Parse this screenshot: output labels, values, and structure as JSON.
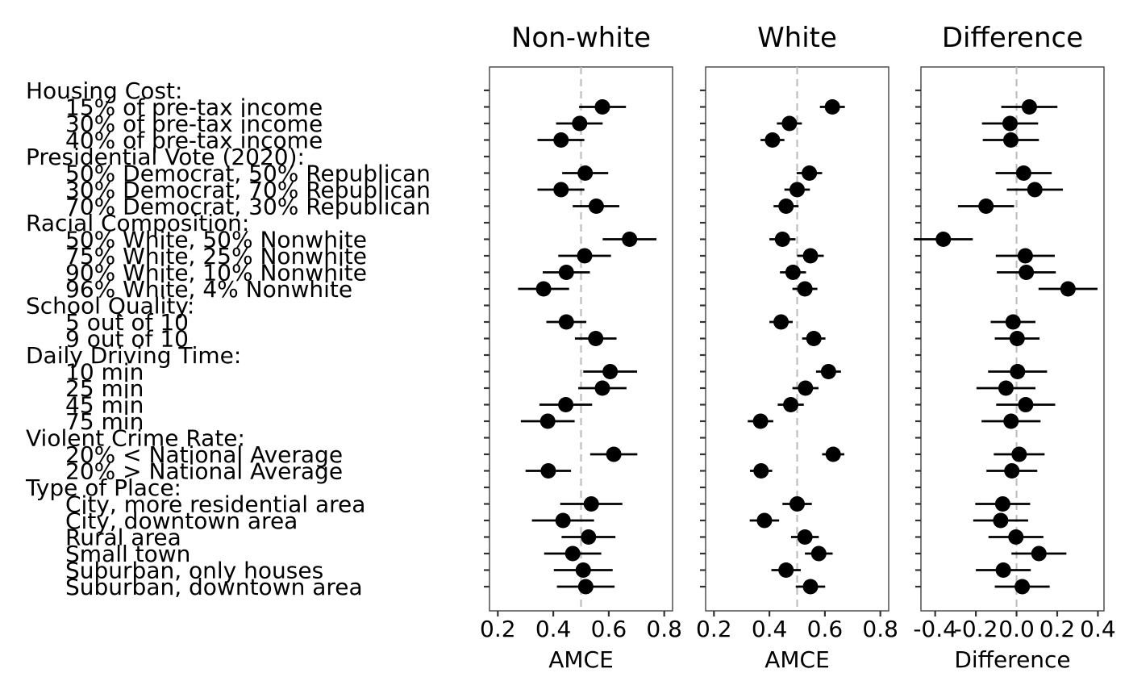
{
  "chart_data": {
    "type": "scatter",
    "subtype": "coefficient-plot-with-error-bars",
    "rows": [
      {
        "label": "Housing Cost:",
        "header": true
      },
      {
        "label": "15% of pre-tax income"
      },
      {
        "label": "30% of pre-tax income"
      },
      {
        "label": "40% of pre-tax income"
      },
      {
        "label": "Presidential Vote (2020):",
        "header": true
      },
      {
        "label": "50% Democrat, 50% Republican"
      },
      {
        "label": "30% Democrat, 70% Republican"
      },
      {
        "label": "70% Democrat, 30% Republican"
      },
      {
        "label": "Racial Composition:",
        "header": true
      },
      {
        "label": "50% White, 50% Nonwhite"
      },
      {
        "label": "75% White, 25% Nonwhite"
      },
      {
        "label": "90% White, 10% Nonwhite"
      },
      {
        "label": "96% White, 4% Nonwhite"
      },
      {
        "label": "School Quality:",
        "header": true
      },
      {
        "label": "5 out of 10"
      },
      {
        "label": "9 out of 10"
      },
      {
        "label": "Daily Driving Time:",
        "header": true
      },
      {
        "label": "10 min"
      },
      {
        "label": "25 min"
      },
      {
        "label": "45 min"
      },
      {
        "label": "75 min"
      },
      {
        "label": "Violent Crime Rate:",
        "header": true
      },
      {
        "label": "20% < National Average"
      },
      {
        "label": "20% > National Average"
      },
      {
        "label": "Type of Place:",
        "header": true
      },
      {
        "label": "City, more residential area"
      },
      {
        "label": "City, downtown area"
      },
      {
        "label": "Rural area"
      },
      {
        "label": "Small town"
      },
      {
        "label": "Suburban, only houses"
      },
      {
        "label": "Suburban, downtown area"
      }
    ],
    "panels": [
      {
        "title": "Non-white",
        "xlabel": "AMCE",
        "xlim": [
          0.17,
          0.83
        ],
        "ticks": [
          0.2,
          0.4,
          0.6,
          0.8
        ],
        "tick_labels": [
          "0.2",
          "0.4",
          "0.6",
          "0.8"
        ],
        "ref": 0.5,
        "points": [
          null,
          [
            0.577,
            0.493,
            0.662
          ],
          [
            0.495,
            0.41,
            0.578
          ],
          [
            0.428,
            0.343,
            0.512
          ],
          null,
          [
            0.515,
            0.432,
            0.598
          ],
          [
            0.428,
            0.343,
            0.512
          ],
          [
            0.555,
            0.47,
            0.638
          ],
          null,
          [
            0.675,
            0.578,
            0.772
          ],
          [
            0.513,
            0.418,
            0.608
          ],
          [
            0.447,
            0.362,
            0.532
          ],
          [
            0.365,
            0.273,
            0.457
          ],
          null,
          [
            0.447,
            0.375,
            0.519
          ],
          [
            0.553,
            0.478,
            0.628
          ],
          null,
          [
            0.605,
            0.508,
            0.702
          ],
          [
            0.577,
            0.49,
            0.664
          ],
          [
            0.445,
            0.35,
            0.54
          ],
          [
            0.38,
            0.283,
            0.477
          ],
          null,
          [
            0.618,
            0.533,
            0.703
          ],
          [
            0.382,
            0.3,
            0.464
          ],
          null,
          [
            0.537,
            0.425,
            0.649
          ],
          [
            0.435,
            0.323,
            0.547
          ],
          [
            0.527,
            0.43,
            0.624
          ],
          [
            0.47,
            0.367,
            0.573
          ],
          [
            0.508,
            0.402,
            0.614
          ],
          [
            0.517,
            0.413,
            0.621
          ]
        ]
      },
      {
        "title": "White",
        "xlabel": "AMCE",
        "xlim": [
          0.17,
          0.83
        ],
        "ticks": [
          0.2,
          0.4,
          0.6,
          0.8
        ],
        "tick_labels": [
          "0.2",
          "0.4",
          "0.6",
          "0.8"
        ],
        "ref": 0.5,
        "points": [
          null,
          [
            0.627,
            0.582,
            0.672
          ],
          [
            0.472,
            0.427,
            0.517
          ],
          [
            0.411,
            0.368,
            0.454
          ],
          null,
          [
            0.544,
            0.498,
            0.59
          ],
          [
            0.5,
            0.454,
            0.546
          ],
          [
            0.46,
            0.415,
            0.505
          ],
          null,
          [
            0.447,
            0.4,
            0.494
          ],
          [
            0.548,
            0.5,
            0.596
          ],
          [
            0.485,
            0.438,
            0.532
          ],
          [
            0.528,
            0.483,
            0.573
          ],
          null,
          [
            0.442,
            0.4,
            0.484
          ],
          [
            0.56,
            0.518,
            0.602
          ],
          null,
          [
            0.613,
            0.568,
            0.658
          ],
          [
            0.53,
            0.483,
            0.577
          ],
          [
            0.477,
            0.43,
            0.524
          ],
          [
            0.368,
            0.322,
            0.414
          ],
          null,
          [
            0.63,
            0.59,
            0.67
          ],
          [
            0.37,
            0.33,
            0.41
          ],
          null,
          [
            0.5,
            0.447,
            0.553
          ],
          [
            0.382,
            0.329,
            0.435
          ],
          [
            0.528,
            0.478,
            0.578
          ],
          [
            0.578,
            0.528,
            0.628
          ],
          [
            0.46,
            0.407,
            0.513
          ],
          [
            0.548,
            0.495,
            0.601
          ]
        ]
      },
      {
        "title": "Difference",
        "xlabel": "Difference",
        "xlim": [
          -0.47,
          0.43
        ],
        "ticks": [
          -0.4,
          -0.2,
          0.0,
          0.2,
          0.4
        ],
        "tick_labels": [
          "-0.4",
          "-0.2",
          "0.0",
          "0.2",
          "0.4"
        ],
        "ref": 0.0,
        "points": [
          null,
          [
            0.063,
            -0.075,
            0.201
          ],
          [
            -0.032,
            -0.17,
            0.106
          ],
          [
            -0.028,
            -0.166,
            0.11
          ],
          null,
          [
            0.035,
            -0.103,
            0.173
          ],
          [
            0.09,
            -0.048,
            0.228
          ],
          [
            -0.15,
            -0.288,
            -0.012
          ],
          null,
          [
            -0.36,
            -0.505,
            -0.215
          ],
          [
            0.043,
            -0.102,
            0.188
          ],
          [
            0.048,
            -0.097,
            0.193
          ],
          [
            0.253,
            0.108,
            0.398
          ],
          null,
          [
            -0.017,
            -0.127,
            0.093
          ],
          [
            0.003,
            -0.107,
            0.113
          ],
          null,
          [
            0.005,
            -0.14,
            0.15
          ],
          [
            -0.052,
            -0.197,
            0.093
          ],
          [
            0.045,
            -0.1,
            0.19
          ],
          [
            -0.027,
            -0.172,
            0.118
          ],
          null,
          [
            0.013,
            -0.112,
            0.138
          ],
          [
            -0.023,
            -0.148,
            0.102
          ],
          null,
          [
            -0.068,
            -0.203,
            0.067
          ],
          [
            -0.078,
            -0.213,
            0.057
          ],
          [
            -0.003,
            -0.138,
            0.132
          ],
          [
            0.11,
            -0.025,
            0.245
          ],
          [
            -0.065,
            -0.2,
            0.07
          ],
          [
            0.028,
            -0.107,
            0.163
          ]
        ]
      }
    ]
  }
}
